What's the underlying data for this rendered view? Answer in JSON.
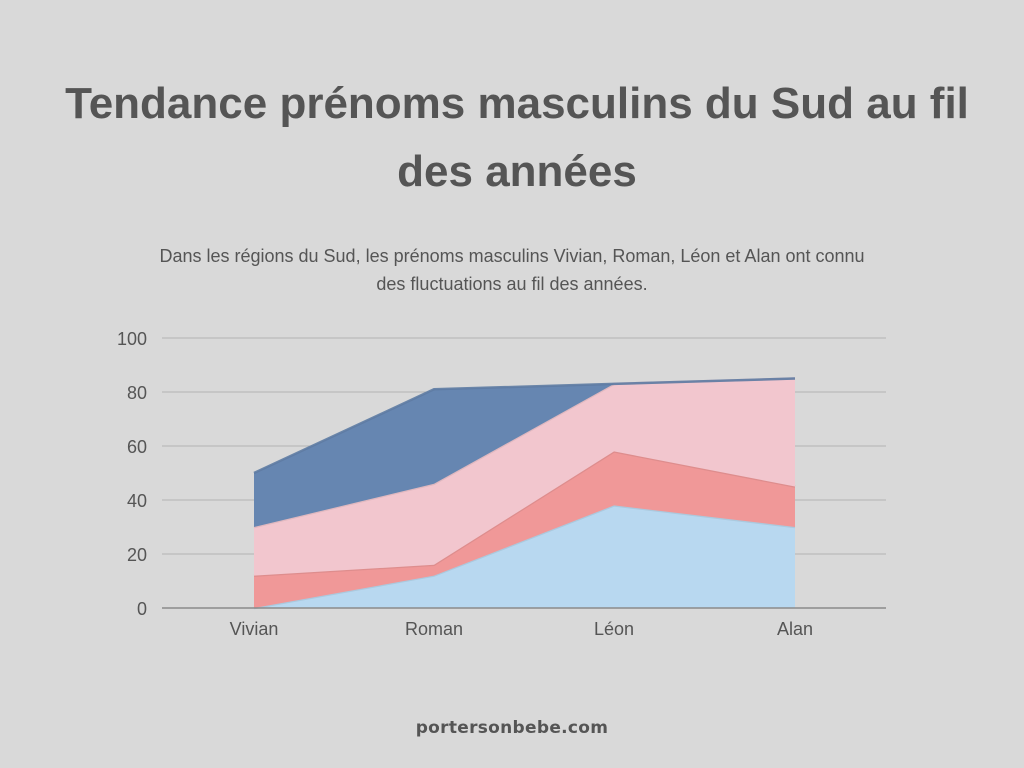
{
  "header": {
    "title": "Tendance prénoms masculins du Sud au fil des années",
    "subtitle": "Dans les régions du Sud, les prénoms masculins Vivian, Roman, Léon et Alan ont connu des fluctuations au fil des années."
  },
  "footer": {
    "site": "portersonbebe.com"
  },
  "chart_data": {
    "type": "area",
    "stacked": true,
    "categories": [
      "Vivian",
      "Roman",
      "Léon",
      "Alan"
    ],
    "ylim": [
      0,
      100
    ],
    "yticks": [
      0,
      20,
      40,
      60,
      80,
      100
    ],
    "grid": true,
    "legend": "none",
    "series": [
      {
        "values": [
          0,
          12,
          38,
          30
        ],
        "color": "#b8d8f0"
      },
      {
        "values": [
          12,
          4,
          20,
          15
        ],
        "color": "#f09898"
      },
      {
        "values": [
          18,
          30,
          25,
          40
        ],
        "color": "#f2c6ce"
      },
      {
        "values": [
          20,
          35,
          0,
          0
        ],
        "color": "#6686b1"
      }
    ]
  }
}
